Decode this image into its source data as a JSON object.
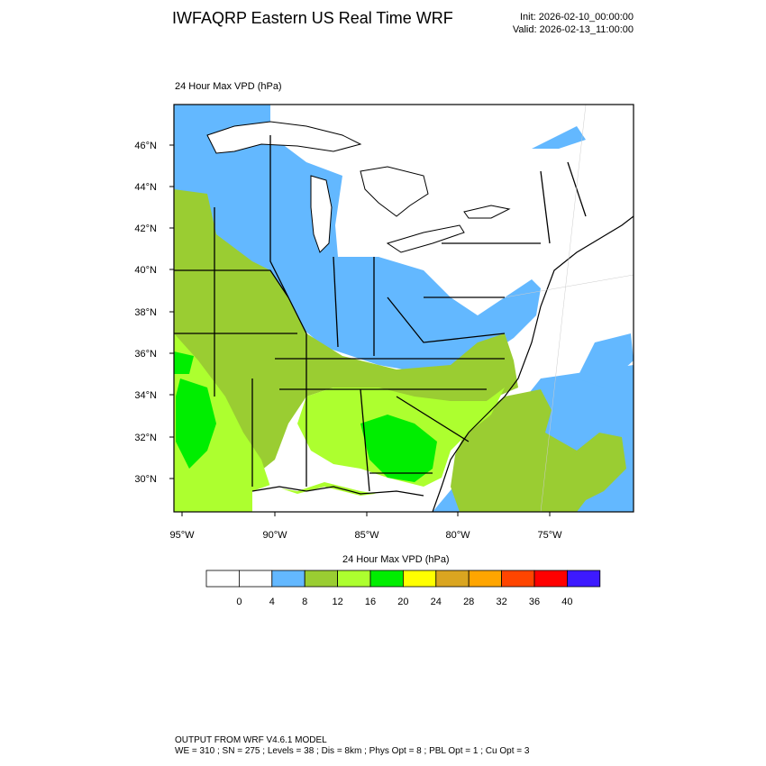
{
  "header": {
    "title": "IWFAQRP Eastern US Real Time WRF",
    "init": "Init: 2026-02-10_00:00:00",
    "valid": "Valid: 2026-02-13_11:00:00"
  },
  "field_label": "24 Hour Max VPD   (hPa)",
  "map": {
    "lat_labels": [
      "46°N",
      "44°N",
      "42°N",
      "40°N",
      "38°N",
      "36°N",
      "34°N",
      "32°N",
      "30°N"
    ],
    "lon_labels": [
      "95°W",
      "90°W",
      "85°W",
      "80°W",
      "75°W"
    ]
  },
  "colorbar": {
    "title": "24 Hour Max VPD  (hPa)",
    "ticks": [
      "0",
      "4",
      "8",
      "12",
      "16",
      "20",
      "24",
      "28",
      "32",
      "36",
      "40"
    ],
    "colors": [
      "#ffffff",
      "#ffffff",
      "#63b8ff",
      "#9acd32",
      "#adff2f",
      "#00ee00",
      "#ffff00",
      "#daa520",
      "#ffa500",
      "#ff4500",
      "#ff0000",
      "#3d1aff"
    ]
  },
  "footer": {
    "line1": "OUTPUT FROM WRF V4.6.1 MODEL",
    "line2": "WE = 310 ; SN = 275 ; Levels = 38 ; Dis = 8km ; Phys Opt = 8 ; PBL Opt = 1 ; Cu Opt = 3"
  },
  "colors": {
    "white": "#ffffff",
    "blue": "#63b8ff",
    "olive": "#9acd32",
    "lime": "#adff2f",
    "green": "#00ee00"
  }
}
